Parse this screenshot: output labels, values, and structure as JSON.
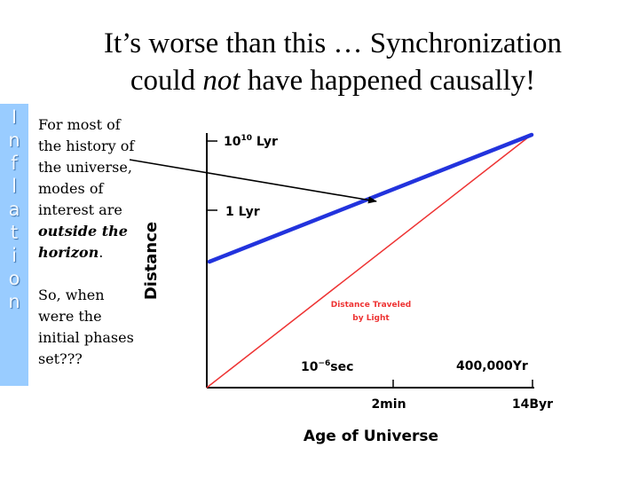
{
  "slide": {
    "title_line1": "It’s worse than this … Synchronization",
    "title_line2_pre": "could ",
    "title_line2_em": "not",
    "title_line2_post": " have happened causally!"
  },
  "sidebar": {
    "letters": [
      "I",
      "n",
      "f",
      "l",
      "a",
      "t",
      "i",
      "o",
      "n"
    ],
    "color": "#99ccff"
  },
  "paragraph1": {
    "line1": "For most of",
    "line2": "the history of",
    "line3": "the universe,",
    "line4": "modes of",
    "line5": "interest are",
    "emph1": "outside the",
    "emph2": "horizon",
    "end": "."
  },
  "paragraph2": {
    "line1": "So, when",
    "line2": "were the",
    "line3": "initial phases",
    "line4": "set???"
  },
  "diagram": {
    "y_label": "Distance",
    "x_label": "Age of Universe",
    "y_tick_top_base": "10",
    "y_tick_top_exp": "10",
    "y_tick_top_unit": " Lyr",
    "y_tick_mid": "1 Lyr",
    "x_tick_2min": "2min",
    "x_tick_14byr": "14Byr",
    "annot_time_base": "10",
    "annot_time_exp": "−6",
    "annot_time_unit": "sec",
    "annot_recomb": "400,000Yr",
    "light_label_line1": "Distance Traveled",
    "light_label_line2": "by Light",
    "mode_line_color": "#2233dd",
    "light_line_color": "#ee3333"
  }
}
